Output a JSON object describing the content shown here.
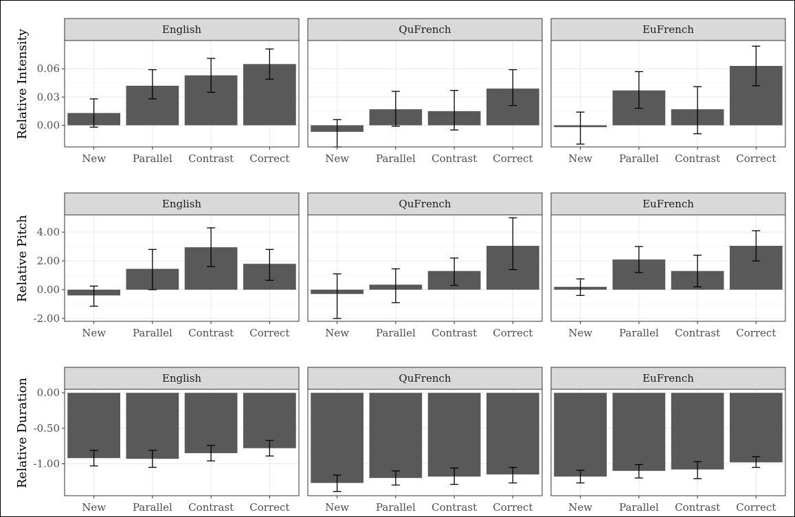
{
  "chart_data": {
    "type": "bar",
    "layout": "facet-grid-3x3",
    "categories": [
      "New",
      "Parallel",
      "Contrast",
      "Correct"
    ],
    "columns": [
      "English",
      "QuFrench",
      "EuFrench"
    ],
    "colors": {
      "bar": "#595959",
      "strip_bg": "#d9d9d9",
      "strip_border": "#333333",
      "grid": "#ebebeb",
      "panel_border": "#333333",
      "error_bar": "#000000"
    },
    "rows": [
      {
        "ylabel": "Relative Intensity",
        "ylim": [
          -0.023,
          0.09
        ],
        "yticks": [
          0.0,
          0.03,
          0.06
        ],
        "ytick_labels": [
          "0.00",
          "0.03",
          "0.06"
        ],
        "panels": [
          {
            "strip": "English",
            "values": [
              0.013,
              0.042,
              0.053,
              0.065
            ],
            "err_low": [
              -0.002,
              0.028,
              0.035,
              0.049
            ],
            "err_high": [
              0.028,
              0.059,
              0.071,
              0.081
            ]
          },
          {
            "strip": "QuFrench",
            "values": [
              -0.007,
              0.017,
              0.015,
              0.039
            ],
            "err_low": [
              -0.023,
              -0.001,
              -0.005,
              0.021
            ],
            "err_high": [
              0.006,
              0.036,
              0.037,
              0.059
            ]
          },
          {
            "strip": "EuFrench",
            "values": [
              -0.002,
              0.037,
              0.017,
              0.063
            ],
            "err_low": [
              -0.02,
              0.018,
              -0.009,
              0.042
            ],
            "err_high": [
              0.014,
              0.057,
              0.041,
              0.084
            ]
          }
        ]
      },
      {
        "ylabel": "Relative Pitch",
        "ylim": [
          -2.2,
          5.2
        ],
        "yticks": [
          -2.0,
          0.0,
          2.0,
          4.0
        ],
        "ytick_labels": [
          "-2.00",
          "0.00",
          "2.00",
          "4.00"
        ],
        "panels": [
          {
            "strip": "English",
            "values": [
              -0.4,
              1.45,
              2.95,
              1.8
            ],
            "err_low": [
              -1.15,
              0.0,
              1.6,
              0.65
            ],
            "err_high": [
              0.25,
              2.8,
              4.3,
              2.8
            ]
          },
          {
            "strip": "QuFrench",
            "values": [
              -0.3,
              0.35,
              1.3,
              3.05
            ],
            "err_low": [
              -2.0,
              -0.9,
              0.3,
              1.4
            ],
            "err_high": [
              1.1,
              1.45,
              2.2,
              5.0
            ]
          },
          {
            "strip": "EuFrench",
            "values": [
              0.2,
              2.1,
              1.3,
              3.05
            ],
            "err_low": [
              -0.4,
              1.2,
              0.2,
              2.0
            ],
            "err_high": [
              0.75,
              3.0,
              2.4,
              4.1
            ]
          }
        ]
      },
      {
        "ylabel": "Relative Duration",
        "ylim": [
          -1.45,
          0.05
        ],
        "yticks": [
          0.0,
          -0.5,
          -1.0
        ],
        "ytick_labels": [
          "0.00",
          "-0.50",
          "-1.00"
        ],
        "panels": [
          {
            "strip": "English",
            "values": [
              -0.92,
              -0.93,
              -0.85,
              -0.78
            ],
            "err_low": [
              -1.03,
              -1.05,
              -0.96,
              -0.89
            ],
            "err_high": [
              -0.81,
              -0.81,
              -0.74,
              -0.67
            ]
          },
          {
            "strip": "QuFrench",
            "values": [
              -1.27,
              -1.2,
              -1.18,
              -1.15
            ],
            "err_low": [
              -1.39,
              -1.3,
              -1.29,
              -1.27
            ],
            "err_high": [
              -1.16,
              -1.1,
              -1.06,
              -1.05
            ]
          },
          {
            "strip": "EuFrench",
            "values": [
              -1.18,
              -1.1,
              -1.08,
              -0.98
            ],
            "err_low": [
              -1.27,
              -1.2,
              -1.21,
              -1.05
            ],
            "err_high": [
              -1.09,
              -1.01,
              -0.97,
              -0.9
            ]
          }
        ]
      }
    ]
  }
}
